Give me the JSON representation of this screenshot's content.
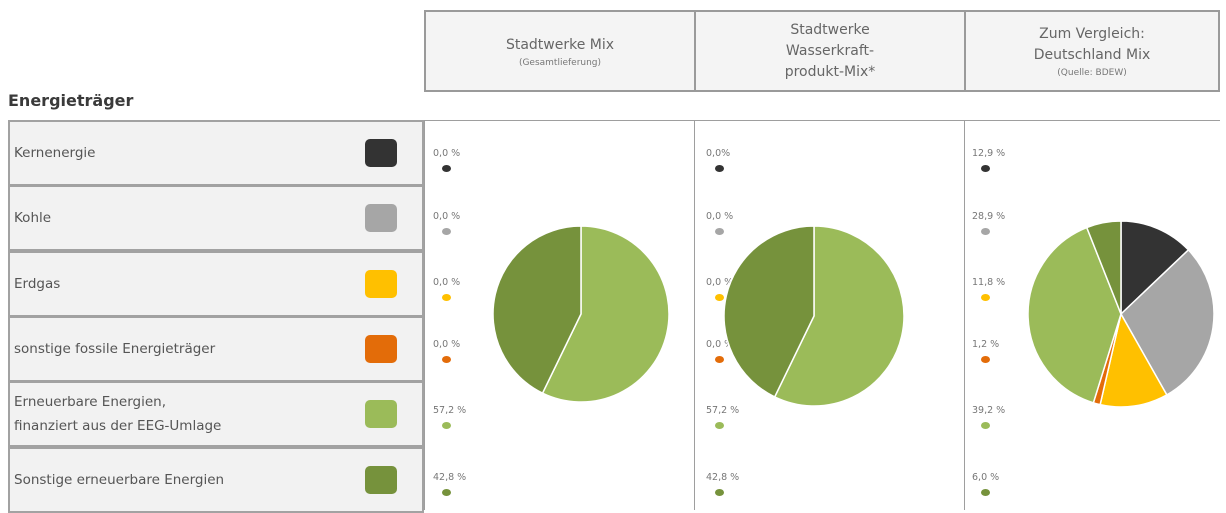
{
  "header": {
    "columns": [
      {
        "title": "Stadtwerke Mix",
        "subtitle": "(Gesamtlieferung)"
      },
      {
        "title": "Stadtwerke\nWasserkraft-\nprodukt-Mix*",
        "subtitle": ""
      },
      {
        "title": "Zum Vergleich:\nDeutschland Mix",
        "subtitle": "(Quelle: BDEW)"
      }
    ]
  },
  "section_title": "Energieträger",
  "categories": [
    {
      "label": "Kernenergie",
      "color": "#333333"
    },
    {
      "label": "Kohle",
      "color": "#a6a6a6"
    },
    {
      "label": "Erdgas",
      "color": "#ffc000"
    },
    {
      "label": "sonstige fossile Energieträger",
      "color": "#e36c09"
    },
    {
      "label": "Erneuerbare Energien,\nfinanziert aus der EEG-Umlage",
      "color": "#9bbb59"
    },
    {
      "label": "Sonstige erneuerbare Energien",
      "color": "#76923c"
    }
  ],
  "chart_data": [
    {
      "type": "pie",
      "title": "Stadtwerke Mix",
      "categories": [
        "Kernenergie",
        "Kohle",
        "Erdgas",
        "sonstige fossile Energieträger",
        "Erneuerbare Energien, finanziert aus der EEG-Umlage",
        "Sonstige erneuerbare Energien"
      ],
      "values": [
        0.0,
        0.0,
        0.0,
        0.0,
        57.2,
        42.8
      ],
      "labels": [
        "0,0 %",
        "0,0 %",
        "0,0 %",
        "0,0 %",
        "57,2 %",
        "42,8 %"
      ]
    },
    {
      "type": "pie",
      "title": "Stadtwerke Wasserkraftprodukt-Mix*",
      "categories": [
        "Kernenergie",
        "Kohle",
        "Erdgas",
        "sonstige fossile Energieträger",
        "Erneuerbare Energien, finanziert aus der EEG-Umlage",
        "Sonstige erneuerbare Energien"
      ],
      "values": [
        0.0,
        0.0,
        0.0,
        0.0,
        57.2,
        42.8
      ],
      "labels": [
        "0,0%",
        "0,0 %",
        "0,0 %",
        "0,0 %",
        "57,2 %",
        "42,8 %"
      ]
    },
    {
      "type": "pie",
      "title": "Zum Vergleich: Deutschland Mix",
      "categories": [
        "Kernenergie",
        "Kohle",
        "Erdgas",
        "sonstige fossile Energieträger",
        "Erneuerbare Energien, finanziert aus der EEG-Umlage",
        "Sonstige erneuerbare Energien"
      ],
      "values": [
        12.9,
        28.9,
        11.8,
        1.2,
        39.2,
        6.0
      ],
      "labels": [
        "12,9 %",
        "28,9 %",
        "11,8 %",
        "1,2 %",
        "39,2 %",
        "6,0 %"
      ]
    }
  ]
}
